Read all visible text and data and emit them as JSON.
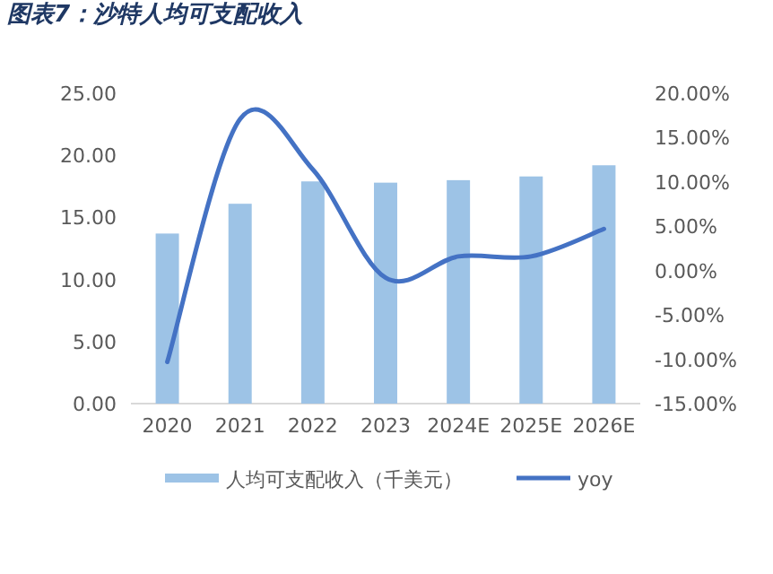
{
  "chart_data": {
    "type": "bar",
    "title": "图表7：沙特人均可支配收入",
    "categories": [
      "2020",
      "2021",
      "2022",
      "2023",
      "2024E",
      "2025E",
      "2026E"
    ],
    "series": [
      {
        "name": "人均可支配收入（千美元）",
        "color": "#9dc3e6",
        "values": [
          13.7,
          16.1,
          17.9,
          17.8,
          18.0,
          18.3,
          19.2
        ]
      },
      {
        "name": "yoy",
        "type": "line",
        "axis": "y2",
        "color": "#4472c4",
        "values": [
          -10.3,
          17.1,
          11.4,
          -0.8,
          1.6,
          1.6,
          4.7
        ]
      }
    ],
    "ylim": [
      0,
      25
    ],
    "yticks": [
      {
        "value": 0,
        "label": "0.00"
      },
      {
        "value": 5,
        "label": "5.00"
      },
      {
        "value": 10,
        "label": "10.00"
      },
      {
        "value": 15,
        "label": "15.00"
      },
      {
        "value": 20,
        "label": "20.00"
      },
      {
        "value": 25,
        "label": "25.00"
      }
    ],
    "y2lim": [
      -15,
      20
    ],
    "y2ticks": [
      {
        "value": -15,
        "label": "-15.00%"
      },
      {
        "value": -10,
        "label": "-10.00%"
      },
      {
        "value": -5,
        "label": "-5.00%"
      },
      {
        "value": 0,
        "label": "0.00%"
      },
      {
        "value": 5,
        "label": "5.00%"
      },
      {
        "value": 10,
        "label": "10.00%"
      },
      {
        "value": 15,
        "label": "15.00%"
      },
      {
        "value": 20,
        "label": "20.00%"
      }
    ],
    "legend": "bottom",
    "grid": false,
    "marker": "none",
    "line_style": "solid"
  }
}
